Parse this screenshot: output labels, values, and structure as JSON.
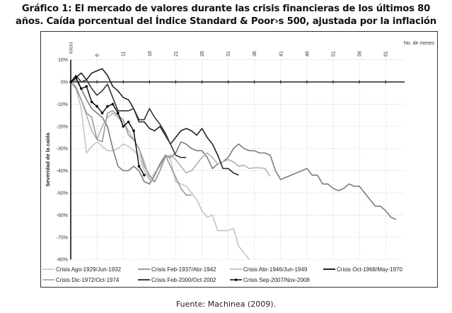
{
  "title_line1": "Gráfico 1: El mercado de valores durante las crisis financieras de los últimos 80",
  "title_line2": "años. Caída porcentual del Índice Standard & Poor›s 500, ajustada por la inflación",
  "source": "Fuente: Machinea (2009).",
  "chart_data": {
    "type": "line",
    "title": "El mercado de valores durante las crisis financieras de los últimos 80 años",
    "xlabel": "No. de meses",
    "ylabel": "Severidad de la caída",
    "x_tick_labels": [
      "Inicio",
      "6",
      "11",
      "16",
      "21",
      "26",
      "31",
      "36",
      "41",
      "46",
      "51",
      "56",
      "61"
    ],
    "y_tick_labels": [
      "10%",
      "0%",
      "-10%",
      "-20%",
      "-30%",
      "-40%",
      "-50%",
      "-60%",
      "-70%",
      "-80%"
    ],
    "ylim": [
      -80,
      10
    ],
    "xlim": [
      0,
      63
    ],
    "grid": true,
    "legend_position": "bottom",
    "series": [
      {
        "name": "Crisis Ago-1929/Jun-1932",
        "color": "#c4c4c4",
        "markers": false,
        "values": [
          0,
          -3,
          -12,
          -32,
          -29,
          -27,
          -29,
          -31,
          -31,
          -30,
          -28,
          -29,
          -31,
          -33,
          -40,
          -44,
          -41,
          -38,
          -33,
          -35,
          -45,
          -46,
          -47,
          -50,
          -53,
          -58,
          -61,
          -60,
          -67,
          -67,
          -67,
          -66,
          -74,
          -77,
          -80
        ]
      },
      {
        "name": "Crisis Feb-1937/Abr-1942",
        "color": "#7c7c7c",
        "markers": false,
        "values": [
          0,
          1,
          -3,
          -8,
          -12,
          -14,
          -16,
          -20,
          -30,
          -38,
          -40,
          -40,
          -38,
          -40,
          -45,
          -46,
          -42,
          -37,
          -33,
          -34,
          -32,
          -27,
          -28,
          -30,
          -31,
          -31,
          -34,
          -39,
          -37,
          -36,
          -34,
          -30,
          -28,
          -30,
          -31,
          -31,
          -32,
          -32,
          -33,
          -40,
          -44,
          -43,
          -42,
          -41,
          -40,
          -39,
          -42,
          -42,
          -46,
          -46,
          -48,
          -49,
          -48,
          -46,
          -47,
          -47,
          -50,
          -53,
          -56,
          -56,
          -58,
          -61,
          -62
        ]
      },
      {
        "name": "Crisis Abr-1946/Jun-1949",
        "color": "#b2b2b2",
        "markers": false,
        "values": [
          0,
          -2,
          -8,
          -15,
          -22,
          -26,
          -20,
          -16,
          -14,
          -16,
          -18,
          -22,
          -26,
          -30,
          -36,
          -44,
          -45,
          -40,
          -34,
          -33,
          -35,
          -38,
          -41,
          -40,
          -37,
          -34,
          -32,
          -34,
          -37,
          -36,
          -35,
          -36,
          -38,
          -37.5,
          -39,
          -38.7,
          -38.7,
          -39,
          -42.5
        ]
      },
      {
        "name": "Crisis Oct-1968/May-1970",
        "color": "#222222",
        "markers": false,
        "values": [
          0,
          2,
          4,
          1,
          4,
          5,
          6,
          3,
          -2,
          -4,
          -7,
          -8,
          -12,
          -18,
          -18,
          -21,
          -22,
          -20,
          -24,
          -28,
          -25,
          -22,
          -21,
          -22,
          -24,
          -21,
          -25,
          -28,
          -33,
          -39,
          -39,
          -41,
          -42
        ]
      },
      {
        "name": "Crisis Dic-1972/Oct-1974",
        "color": "#9a9a9a",
        "markers": false,
        "values": [
          0,
          -3,
          -8,
          -14,
          -16,
          -26,
          -27,
          -14,
          -13,
          -15,
          -17,
          -24,
          -26,
          -30,
          -38,
          -42,
          -45,
          -40,
          -33,
          -38,
          -43,
          -48,
          -51,
          -51
        ]
      },
      {
        "name": "Crisis Feb-2000/Oct-2002",
        "color": "#383838",
        "markers": false,
        "values": [
          0,
          3,
          0,
          1,
          -3,
          -6,
          -4,
          -1,
          -7,
          -13,
          -13,
          -13,
          -12,
          -17,
          -17,
          -12,
          -16,
          -19,
          -23,
          -28,
          -33,
          -34,
          -34
        ]
      },
      {
        "name": "Crisis Sep-2007/Nov-2008",
        "color": "#000000",
        "markers": true,
        "values": [
          0,
          2,
          -3,
          -2,
          -9,
          -11,
          -14,
          -11,
          -10,
          -14,
          -20,
          -18,
          -22,
          -38,
          -42
        ]
      }
    ]
  }
}
